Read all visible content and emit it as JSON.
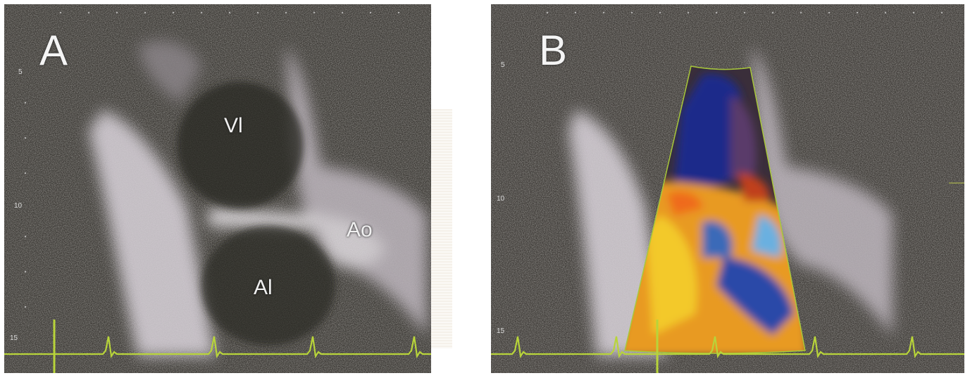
{
  "panels": [
    {
      "id": "A",
      "letter": "A",
      "labels": {
        "lv": "Vl",
        "la": "Al",
        "ao": "Ao"
      },
      "depth_ticks": [
        "5",
        "10",
        "15"
      ]
    },
    {
      "id": "B",
      "letter": "B",
      "depth_ticks": [
        "5",
        "10",
        "15"
      ]
    }
  ],
  "colors": {
    "background": "#3d3a36",
    "tissue": "#e8e4e8",
    "ecg_trace": "#b8d43a",
    "doppler_red": "#e8882a",
    "doppler_yellow": "#f0c020",
    "doppler_blue": "#2a3a9a"
  }
}
